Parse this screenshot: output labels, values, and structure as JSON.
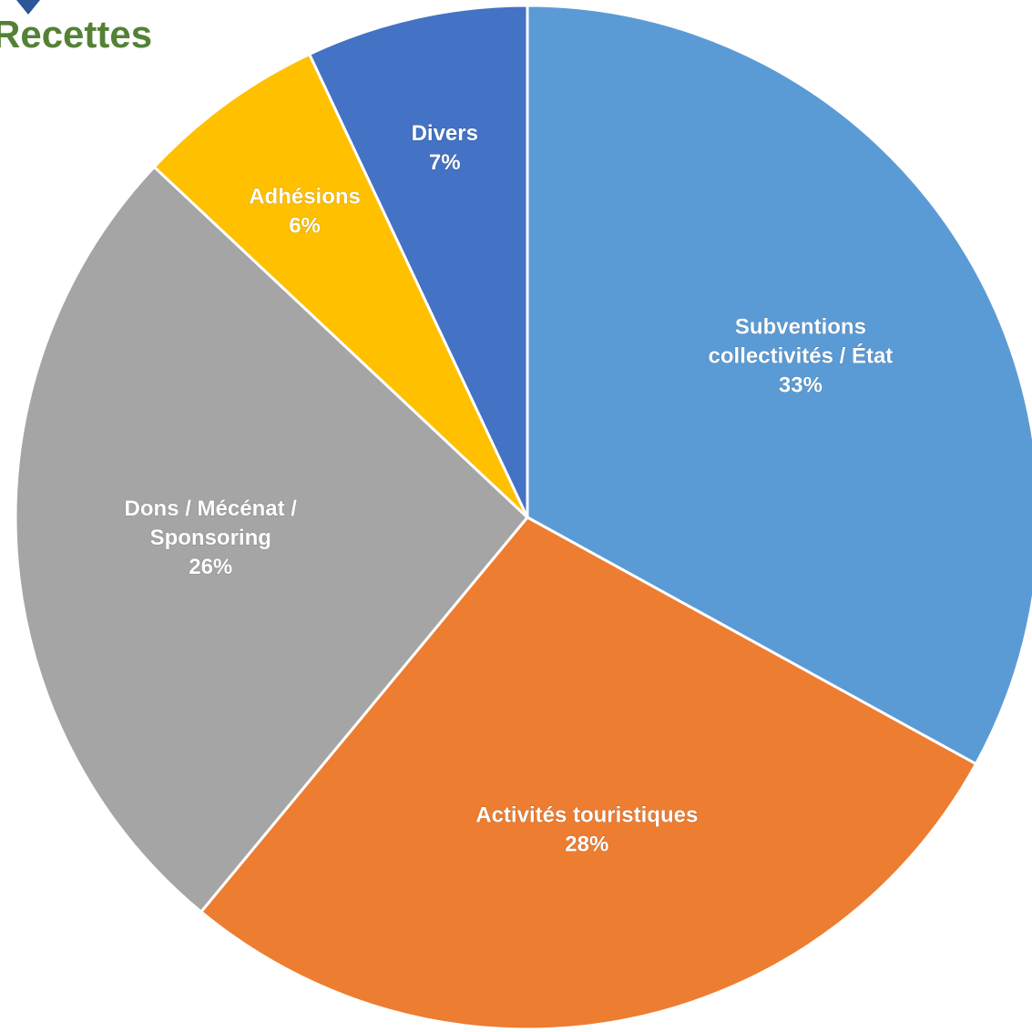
{
  "title": "Recettes",
  "colors": {
    "title": "#538135",
    "logo": "#2e5597",
    "slice_border": "#ffffff",
    "label_text": "#ffffff"
  },
  "chart_data": {
    "type": "pie",
    "title": "Recettes",
    "start": "12 o'clock",
    "direction": "clockwise",
    "slices": [
      {
        "label_lines": [
          "Subventions",
          "collectivités / État"
        ],
        "value": 33,
        "percent_label": "33%",
        "color": "#5b9bd5"
      },
      {
        "label_lines": [
          "Activités touristiques"
        ],
        "value": 28,
        "percent_label": "28%",
        "color": "#ed7d31"
      },
      {
        "label_lines": [
          "Dons / Mécénat /",
          "Sponsoring"
        ],
        "value": 26,
        "percent_label": "26%",
        "color": "#a5a5a5"
      },
      {
        "label_lines": [
          "Adhésions"
        ],
        "value": 6,
        "percent_label": "6%",
        "color": "#ffc000"
      },
      {
        "label_lines": [
          "Divers"
        ],
        "value": 7,
        "percent_label": "7%",
        "color": "#4472c4"
      }
    ]
  }
}
